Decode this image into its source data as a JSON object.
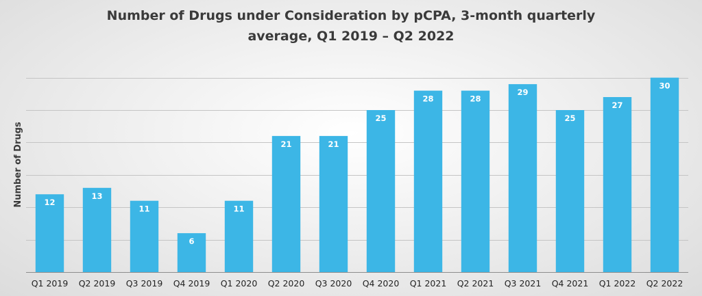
{
  "chart_data": {
    "type": "bar",
    "title_lines": [
      "Number of Drugs under Consideration by pCPA, 3-month quarterly",
      "average, Q1 2019 – Q2 2022"
    ],
    "xlabel": "",
    "ylabel": "Number of Drugs",
    "categories": [
      "Q1 2019",
      "Q2 2019",
      "Q3 2019",
      "Q4 2019",
      "Q1 2020",
      "Q2 2020",
      "Q3 2020",
      "Q4 2020",
      "Q1 2021",
      "Q2 2021",
      "Q3 2021",
      "Q4 2021",
      "Q1 2022",
      "Q2 2022"
    ],
    "values": [
      12,
      13,
      11,
      6,
      11,
      21,
      21,
      25,
      28,
      28,
      29,
      25,
      27,
      30
    ],
    "data_labels": [
      "12",
      "13",
      "11",
      "6",
      "11",
      "21",
      "21",
      "25",
      "28",
      "28",
      "29",
      "25",
      "27",
      "30"
    ],
    "ylim": [
      0,
      30
    ],
    "ytick_step": 5,
    "y_tick_labels_shown": false,
    "grid": true,
    "bar_color": "#3cb6e6"
  }
}
